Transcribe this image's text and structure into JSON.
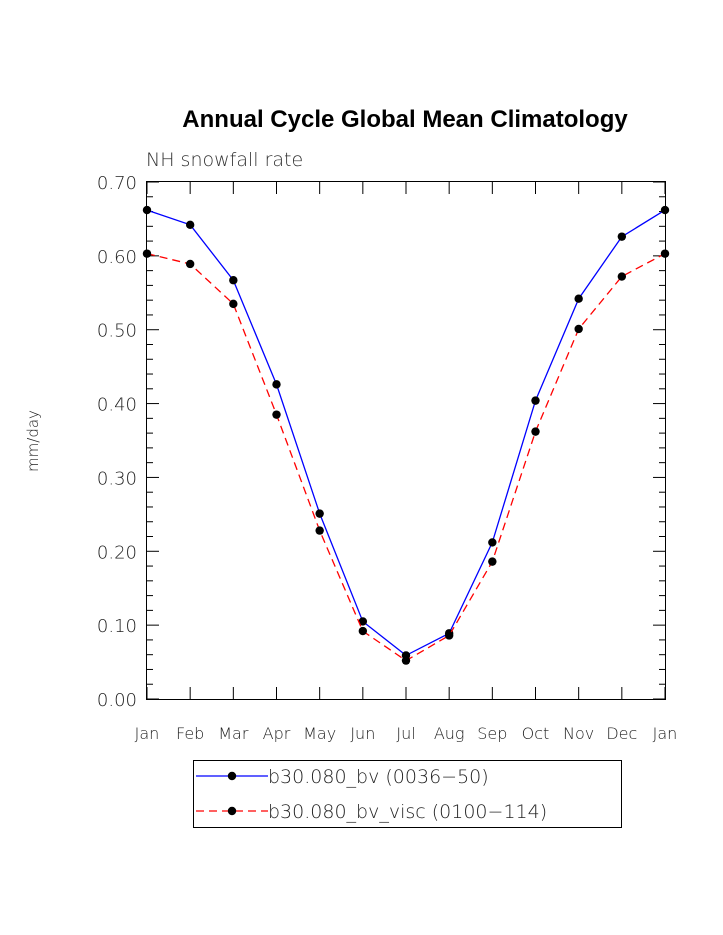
{
  "chart_data": {
    "type": "line",
    "title": "Annual Cycle Global Mean Climatology",
    "subtitle": "NH snowfall rate",
    "xlabel": "",
    "ylabel": "mm/day",
    "ylim": [
      0.0,
      0.7
    ],
    "yticks": [
      "0.00",
      "0.10",
      "0.20",
      "0.30",
      "0.40",
      "0.50",
      "0.60",
      "0.70"
    ],
    "categories": [
      "Jan",
      "Feb",
      "Mar",
      "Apr",
      "May",
      "Jun",
      "Jul",
      "Aug",
      "Sep",
      "Oct",
      "Nov",
      "Dec",
      "Jan"
    ],
    "series": [
      {
        "name": "b30.080_bv (0036−50)",
        "color": "#0000ff",
        "style": "solid",
        "values": [
          0.662,
          0.642,
          0.567,
          0.426,
          0.251,
          0.105,
          0.059,
          0.089,
          0.212,
          0.404,
          0.542,
          0.626,
          0.662
        ]
      },
      {
        "name": "b30.080_bv_visc (0100−114)",
        "color": "#ff0000",
        "style": "dashed",
        "values": [
          0.603,
          0.589,
          0.535,
          0.385,
          0.228,
          0.092,
          0.052,
          0.086,
          0.186,
          0.362,
          0.501,
          0.572,
          0.603
        ]
      }
    ],
    "grid": false,
    "legend_position": "bottom"
  }
}
